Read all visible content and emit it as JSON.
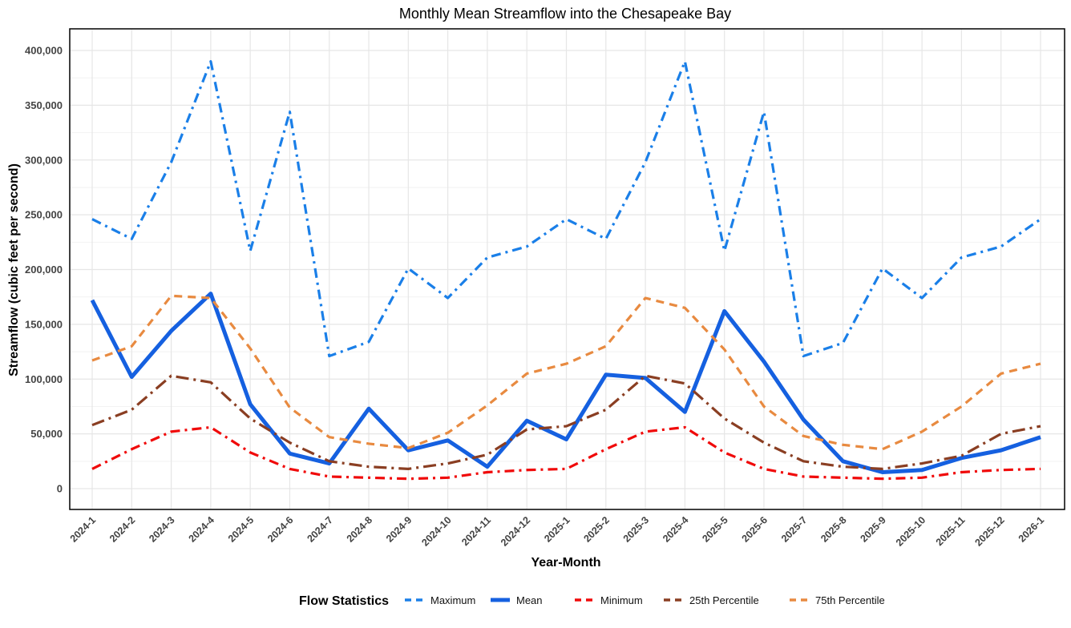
{
  "chart_data": {
    "type": "line",
    "title": "Monthly Mean Streamflow into the Chesapeake Bay",
    "xlabel": "Year-Month",
    "ylabel": "Streamflow (cubic feet per second)",
    "ylim": [
      0,
      400000
    ],
    "yticks": [
      0,
      50000,
      100000,
      150000,
      200000,
      250000,
      300000,
      350000,
      400000
    ],
    "ytick_labels": [
      "0",
      "50,000",
      "100,000",
      "150,000",
      "200,000",
      "250,000",
      "300,000",
      "350,000",
      "400,000"
    ],
    "grid": true,
    "legend_title": "Flow Statistics",
    "legend_position": "bottom",
    "categories": [
      "2024-1",
      "2024-2",
      "2024-3",
      "2024-4",
      "2024-5",
      "2024-6",
      "2024-7",
      "2024-8",
      "2024-9",
      "2024-10",
      "2024-11",
      "2024-12",
      "2025-1",
      "2025-2",
      "2025-3",
      "2025-4",
      "2025-5",
      "2025-6",
      "2025-7",
      "2025-8",
      "2025-9",
      "2025-10",
      "2025-11",
      "2025-12",
      "2026-1"
    ],
    "series": [
      {
        "name": "Maximum",
        "color": "#1a7fe8",
        "dash": "dotdash",
        "values": [
          246000,
          228000,
          298000,
          390000,
          217000,
          344000,
          121000,
          134000,
          201000,
          174000,
          211000,
          221000,
          246000,
          228000,
          298000,
          390000,
          217000,
          344000,
          121000,
          133000,
          201000,
          174000,
          211000,
          221000,
          246000
        ]
      },
      {
        "name": "Mean",
        "color": "#1560e0",
        "dash": "solid",
        "values": [
          172000,
          102000,
          144000,
          178000,
          77000,
          32000,
          23000,
          73000,
          35000,
          44000,
          20000,
          62000,
          45000,
          104000,
          101000,
          70000,
          162000,
          116000,
          63000,
          25000,
          15000,
          17000,
          28000,
          35000,
          47000
        ]
      },
      {
        "name": "Minimum",
        "color": "#f00a0a",
        "dash": "dotdash",
        "values": [
          18000,
          36000,
          52000,
          56000,
          33000,
          18000,
          11000,
          10000,
          9000,
          10000,
          15000,
          17000,
          18000,
          36000,
          52000,
          56000,
          33000,
          18000,
          11000,
          10000,
          9000,
          10000,
          15000,
          17000,
          18000
        ]
      },
      {
        "name": "25th Percentile",
        "color": "#8a3e22",
        "dash": "longdash",
        "values": [
          58000,
          72000,
          103000,
          97000,
          64000,
          42000,
          25000,
          20000,
          18000,
          23000,
          31000,
          54000,
          57000,
          72000,
          103000,
          96000,
          64000,
          42000,
          25000,
          20000,
          18000,
          23000,
          30000,
          50000,
          57000
        ]
      },
      {
        "name": "75th Percentile",
        "color": "#e88a40",
        "dash": "dashed",
        "values": [
          117000,
          130000,
          176000,
          174000,
          128000,
          74000,
          47000,
          41000,
          37000,
          51000,
          76000,
          105000,
          114000,
          130000,
          174000,
          165000,
          127000,
          75000,
          48000,
          40000,
          36000,
          52000,
          75000,
          105000,
          114000
        ]
      }
    ]
  }
}
